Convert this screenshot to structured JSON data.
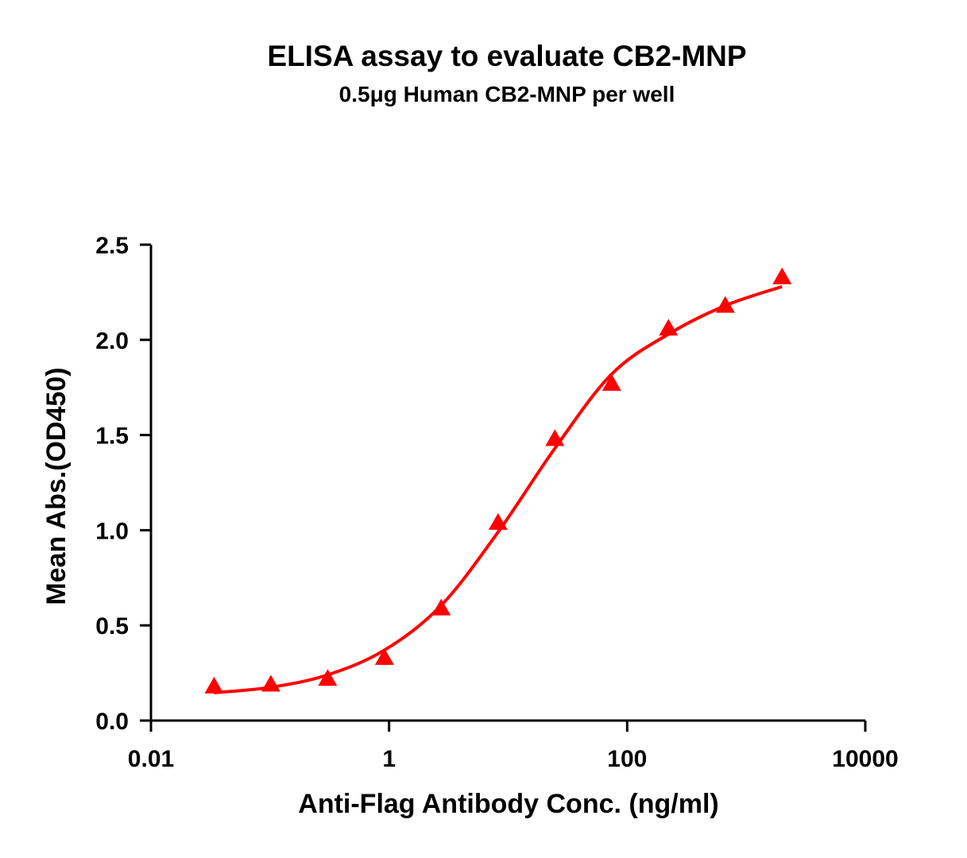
{
  "chart_data": {
    "type": "scatter",
    "title": "ELISA assay to evaluate CB2-MNP",
    "subtitle": "0.5μg Human CB2-MNP per well",
    "x_label": "Anti-Flag Antibody Conc. (ng/ml)",
    "y_label": "Mean Abs.(OD450)",
    "x_scale": "log",
    "xlim": [
      0.01,
      10000
    ],
    "xticks": [
      0.01,
      1,
      100,
      10000
    ],
    "ylim": [
      0,
      2.5
    ],
    "yticks": [
      {
        "value": 0,
        "label": "0.0"
      },
      0.5,
      {
        "value": 1,
        "label": "1.0"
      },
      1.5,
      {
        "value": 2,
        "label": "2.0"
      },
      2.5
    ],
    "series": [
      {
        "color": "#ff0000",
        "marker": "triangle",
        "x": [
          0.0339,
          0.1016,
          0.305,
          0.914,
          2.74,
          8.23,
          24.69,
          74.07,
          222.2,
          666.7,
          2000
        ],
        "values": [
          0.18,
          0.19,
          0.22,
          0.33,
          0.59,
          1.04,
          1.48,
          1.77,
          2.06,
          2.18,
          2.33
        ]
      },
      {
        "color": "#ff0000",
        "line": "fit",
        "x": [
          0.0339,
          0.1016,
          0.305,
          0.914,
          2.74,
          8.23,
          24.69,
          74.07,
          222.2,
          666.7,
          2000
        ],
        "values": [
          0.146,
          0.175,
          0.24,
          0.37,
          0.605,
          0.99,
          1.43,
          1.82,
          2.03,
          2.18,
          2.28
        ]
      }
    ]
  }
}
